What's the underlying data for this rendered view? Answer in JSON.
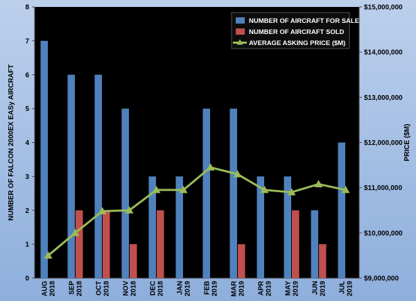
{
  "chart_data": {
    "type": "bar",
    "categories": [
      [
        "AUG",
        "2018"
      ],
      [
        "SEP",
        "2018"
      ],
      [
        "OCT",
        "2018"
      ],
      [
        "NOV",
        "2018"
      ],
      [
        "DEC",
        "2018"
      ],
      [
        "JAN",
        "2019"
      ],
      [
        "FEB",
        "2019"
      ],
      [
        "MAR",
        "2019"
      ],
      [
        "APR",
        "2019"
      ],
      [
        "MAY",
        "2019"
      ],
      [
        "JUN",
        "2019"
      ],
      [
        "JUL",
        "2019"
      ]
    ],
    "series": [
      {
        "name": "NUMBER OF AIRCRAFT FOR SALE",
        "type": "bar",
        "axis": "left",
        "color": "#4f81bd",
        "values": [
          7,
          6,
          6,
          5,
          3,
          3,
          5,
          5,
          3,
          3,
          2,
          4
        ]
      },
      {
        "name": "NUMBER OF AIRCRAFT SOLD",
        "type": "bar",
        "axis": "left",
        "color": "#c0504d",
        "values": [
          0,
          2,
          2,
          1,
          2,
          0,
          0,
          1,
          0,
          2,
          1,
          0
        ]
      },
      {
        "name": "AVERAGE ASKING PRICE ($M)",
        "type": "line",
        "axis": "right",
        "color": "#9bbb59",
        "values": [
          9500000,
          10000000,
          10480000,
          10500000,
          10950000,
          10950000,
          11450000,
          11300000,
          10950000,
          10900000,
          11080000,
          10950000
        ]
      }
    ],
    "ylabel": "NUMBER OF FALCON 2000EX EASy AIRCRAFT",
    "y2label": "PRICE ($M)",
    "ylim": [
      0,
      8
    ],
    "y2lim": [
      9000000,
      15000000
    ],
    "yticks": [
      "0",
      "1",
      "2",
      "3",
      "4",
      "5",
      "6",
      "7",
      "8"
    ],
    "y2ticks": [
      "$9,000,000",
      "$10,000,000",
      "$11,000,000",
      "$12,000,000",
      "$13,000,000",
      "$14,000,000",
      "$15,000,000"
    ],
    "legend_position": "top-right",
    "plot_background": "#000000",
    "grid": false
  }
}
